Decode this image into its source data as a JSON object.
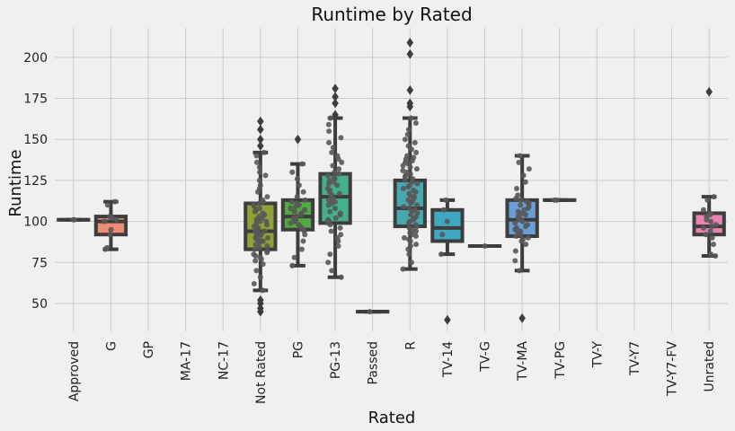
{
  "chart_data": {
    "type": "box",
    "title": "Runtime by Rated",
    "xlabel": "Rated",
    "ylabel": "Runtime",
    "ylim": [
      33,
      218
    ],
    "yticks": [
      50,
      75,
      100,
      125,
      150,
      175,
      200
    ],
    "grid": true,
    "categories": [
      "Approved",
      "G",
      "GP",
      "MA-17",
      "NC-17",
      "Not Rated",
      "PG",
      "PG-13",
      "Passed",
      "R",
      "TV-14",
      "TV-G",
      "TV-MA",
      "TV-PG",
      "TV-Y",
      "TV-Y7",
      "TV-Y7-FV",
      "Unrated"
    ],
    "boxes": [
      {
        "category": "Approved",
        "color": "#e3735a",
        "q1": 101,
        "median": 101,
        "q3": 101,
        "whisker_low": 101,
        "whisker_high": 101,
        "outliers": [],
        "points": [
          101,
          101
        ]
      },
      {
        "category": "G",
        "color": "#ee8a75",
        "q1": 92,
        "median": 100,
        "q3": 103,
        "whisker_low": 83,
        "whisker_high": 112,
        "outliers": [],
        "points": [
          83,
          84,
          92,
          95,
          100,
          101,
          102,
          103,
          110,
          112
        ]
      },
      {
        "category": "GP",
        "color": "#cf8a35",
        "q1": null,
        "median": null,
        "q3": null,
        "whisker_low": null,
        "whisker_high": null,
        "outliers": [],
        "points": []
      },
      {
        "category": "MA-17",
        "color": "#a99a35",
        "q1": null,
        "median": null,
        "q3": null,
        "whisker_low": null,
        "whisker_high": null,
        "outliers": [],
        "points": []
      },
      {
        "category": "NC-17",
        "color": "#8fa035",
        "q1": null,
        "median": null,
        "q3": null,
        "whisker_low": null,
        "whisker_high": null,
        "outliers": [],
        "points": []
      },
      {
        "category": "Not Rated",
        "color": "#8fa235",
        "q1": 83,
        "median": 94,
        "q3": 111,
        "whisker_low": 58,
        "whisker_high": 142,
        "outliers": [
          45,
          47,
          50,
          52,
          146,
          150,
          156,
          161
        ],
        "points": [
          58,
          62,
          66,
          70,
          74,
          76,
          77,
          78,
          79,
          80,
          81,
          82,
          83,
          84,
          85,
          86,
          87,
          88,
          88,
          89,
          90,
          90,
          91,
          92,
          92,
          93,
          94,
          94,
          95,
          96,
          97,
          98,
          99,
          100,
          100,
          101,
          102,
          103,
          104,
          105,
          106,
          107,
          108,
          109,
          110,
          111,
          112,
          113,
          115,
          118,
          120,
          122,
          125,
          128,
          130,
          133,
          136,
          140,
          142
        ]
      },
      {
        "category": "PG",
        "color": "#52a842",
        "q1": 95,
        "median": 103,
        "q3": 113,
        "whisker_low": 73,
        "whisker_high": 135,
        "outliers": [
          150
        ],
        "points": [
          73,
          78,
          83,
          88,
          92,
          94,
          95,
          96,
          97,
          98,
          99,
          100,
          101,
          102,
          103,
          104,
          105,
          106,
          107,
          108,
          109,
          110,
          111,
          112,
          113,
          115,
          118,
          122,
          126,
          130,
          135
        ]
      },
      {
        "category": "PG-13",
        "color": "#45b08a",
        "q1": 99,
        "median": 115,
        "q3": 129,
        "whisker_low": 66,
        "whisker_high": 163,
        "outliers": [
          165,
          172,
          176,
          181
        ],
        "points": [
          66,
          70,
          75,
          80,
          85,
          88,
          90,
          92,
          94,
          96,
          98,
          99,
          100,
          101,
          102,
          104,
          105,
          106,
          108,
          110,
          111,
          112,
          113,
          114,
          115,
          116,
          117,
          118,
          119,
          120,
          122,
          123,
          124,
          125,
          126,
          127,
          128,
          129,
          130,
          132,
          134,
          136,
          138,
          140,
          142,
          145,
          148,
          151,
          155,
          159,
          163
        ]
      },
      {
        "category": "Passed",
        "color": "#47a8a0",
        "q1": 45,
        "median": 45,
        "q3": 45,
        "whisker_low": 45,
        "whisker_high": 45,
        "outliers": [],
        "points": [
          45
        ]
      },
      {
        "category": "R",
        "color": "#48a8b0",
        "q1": 97,
        "median": 108,
        "q3": 125,
        "whisker_low": 71,
        "whisker_high": 163,
        "outliers": [
          170,
          172,
          180,
          202,
          209
        ],
        "points": [
          71,
          75,
          80,
          83,
          85,
          86,
          88,
          89,
          90,
          91,
          92,
          93,
          94,
          95,
          96,
          97,
          98,
          99,
          100,
          101,
          102,
          103,
          104,
          105,
          106,
          107,
          108,
          109,
          110,
          111,
          112,
          113,
          114,
          115,
          116,
          117,
          118,
          119,
          120,
          121,
          122,
          123,
          124,
          125,
          126,
          127,
          128,
          129,
          130,
          131,
          132,
          133,
          134,
          135,
          136,
          137,
          138,
          139,
          140,
          142,
          144,
          146,
          148,
          150,
          153,
          156,
          160,
          163
        ]
      },
      {
        "category": "TV-14",
        "color": "#3ea8c2",
        "q1": 88,
        "median": 96,
        "q3": 107,
        "whisker_low": 80,
        "whisker_high": 113,
        "outliers": [
          40
        ],
        "points": [
          80,
          92,
          100,
          107,
          113
        ]
      },
      {
        "category": "TV-G",
        "color": "#3a9ed6",
        "q1": 85,
        "median": 85,
        "q3": 85,
        "whisker_low": 85,
        "whisker_high": 85,
        "outliers": [],
        "points": [
          85
        ]
      },
      {
        "category": "TV-MA",
        "color": "#6a9ed8",
        "q1": 91,
        "median": 101,
        "q3": 113,
        "whisker_low": 70,
        "whisker_high": 140,
        "outliers": [
          41
        ],
        "points": [
          70,
          76,
          82,
          86,
          88,
          89,
          90,
          91,
          92,
          93,
          94,
          95,
          96,
          97,
          98,
          99,
          100,
          101,
          102,
          103,
          104,
          105,
          106,
          107,
          108,
          109,
          110,
          111,
          112,
          113,
          114,
          116,
          120,
          124,
          128,
          132,
          136,
          140
        ]
      },
      {
        "category": "TV-PG",
        "color": "#9a8fd8",
        "q1": 113,
        "median": 113,
        "q3": 113,
        "whisker_low": 113,
        "whisker_high": 113,
        "outliers": [],
        "points": [
          113,
          113
        ]
      },
      {
        "category": "TV-Y",
        "color": "#b884d8",
        "q1": null,
        "median": null,
        "q3": null,
        "whisker_low": null,
        "whisker_high": null,
        "outliers": [],
        "points": []
      },
      {
        "category": "TV-Y7",
        "color": "#d47ad0",
        "q1": null,
        "median": null,
        "q3": null,
        "whisker_low": null,
        "whisker_high": null,
        "outliers": [],
        "points": []
      },
      {
        "category": "TV-Y7-FV",
        "color": "#e07ac0",
        "q1": null,
        "median": null,
        "q3": null,
        "whisker_low": null,
        "whisker_high": null,
        "outliers": [],
        "points": []
      },
      {
        "category": "Unrated",
        "color": "#ec82b0",
        "q1": 92,
        "median": 97,
        "q3": 105,
        "whisker_low": 79,
        "whisker_high": 115,
        "outliers": [
          179
        ],
        "points": [
          79,
          80,
          86,
          90,
          92,
          94,
          96,
          97,
          98,
          100,
          101,
          103,
          104,
          105,
          107,
          113,
          115
        ]
      }
    ],
    "style": {
      "box_edge_color": "#3d3d3d",
      "point_color": "#585858",
      "background": "#f0f0f0",
      "grid_color": "#cbcbcb"
    }
  }
}
